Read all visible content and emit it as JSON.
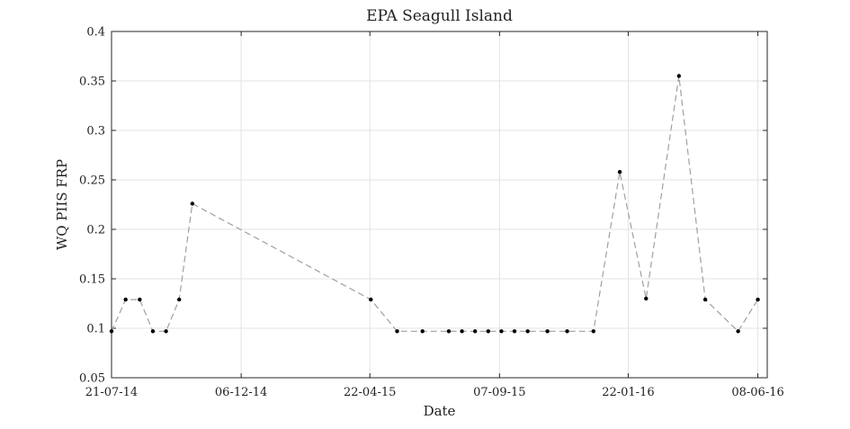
{
  "chart_data": {
    "type": "line",
    "title": "EPA Seagull Island",
    "xlabel": "Date",
    "ylabel": "WQ PIIS FRP",
    "x_ticks": [
      "21-07-14",
      "06-12-14",
      "22-04-15",
      "07-09-15",
      "22-01-16",
      "08-06-16"
    ],
    "y_ticks": [
      "0.05",
      "0.1",
      "0.15",
      "0.2",
      "0.25",
      "0.3",
      "0.35",
      "0.4"
    ],
    "xlim": [
      "2014-07-21",
      "2016-06-18"
    ],
    "ylim": [
      0.05,
      0.4
    ],
    "grid": true,
    "line_style": "dashed",
    "line_color": "#a0a0a0",
    "marker_color": "#000000",
    "series": [
      {
        "points": [
          {
            "x": "2014-07-21",
            "y": 0.097
          },
          {
            "x": "2014-08-05",
            "y": 0.129
          },
          {
            "x": "2014-08-20",
            "y": 0.129
          },
          {
            "x": "2014-09-03",
            "y": 0.097
          },
          {
            "x": "2014-09-17",
            "y": 0.097
          },
          {
            "x": "2014-10-01",
            "y": 0.129
          },
          {
            "x": "2014-10-15",
            "y": 0.226
          },
          {
            "x": "2015-04-23",
            "y": 0.129
          },
          {
            "x": "2015-05-21",
            "y": 0.097
          },
          {
            "x": "2015-06-17",
            "y": 0.097
          },
          {
            "x": "2015-07-15",
            "y": 0.097
          },
          {
            "x": "2015-07-29",
            "y": 0.097
          },
          {
            "x": "2015-08-12",
            "y": 0.097
          },
          {
            "x": "2015-08-26",
            "y": 0.097
          },
          {
            "x": "2015-09-09",
            "y": 0.097
          },
          {
            "x": "2015-09-23",
            "y": 0.097
          },
          {
            "x": "2015-10-07",
            "y": 0.097
          },
          {
            "x": "2015-10-28",
            "y": 0.097
          },
          {
            "x": "2015-11-18",
            "y": 0.097
          },
          {
            "x": "2015-12-16",
            "y": 0.097
          },
          {
            "x": "2016-01-13",
            "y": 0.258
          },
          {
            "x": "2016-02-10",
            "y": 0.13
          },
          {
            "x": "2016-03-16",
            "y": 0.355
          },
          {
            "x": "2016-04-13",
            "y": 0.129
          },
          {
            "x": "2016-05-18",
            "y": 0.097
          },
          {
            "x": "2016-06-08",
            "y": 0.129
          }
        ]
      }
    ]
  }
}
